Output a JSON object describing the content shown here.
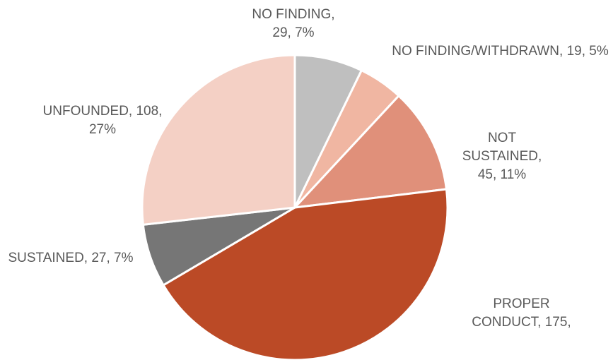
{
  "chart_data": {
    "type": "pie",
    "categories": [
      "NO FINDING,",
      "NO FINDING/WITHDRAWN,",
      "NOT SUSTAINED,",
      "PROPER CONDUCT,",
      "SUSTAINED,",
      "UNFOUNDED,"
    ],
    "values": [
      29,
      19,
      45,
      175,
      27,
      108
    ],
    "value_labels": [
      "29, 7%",
      "19, 5%",
      "45, 11%",
      "175,",
      "27, 7%",
      "108, 27%"
    ],
    "colors": [
      "#bfbfbf",
      "#f0b6a2",
      "#e0907a",
      "#bb4a26",
      "#767676",
      "#f4d0c5"
    ]
  }
}
